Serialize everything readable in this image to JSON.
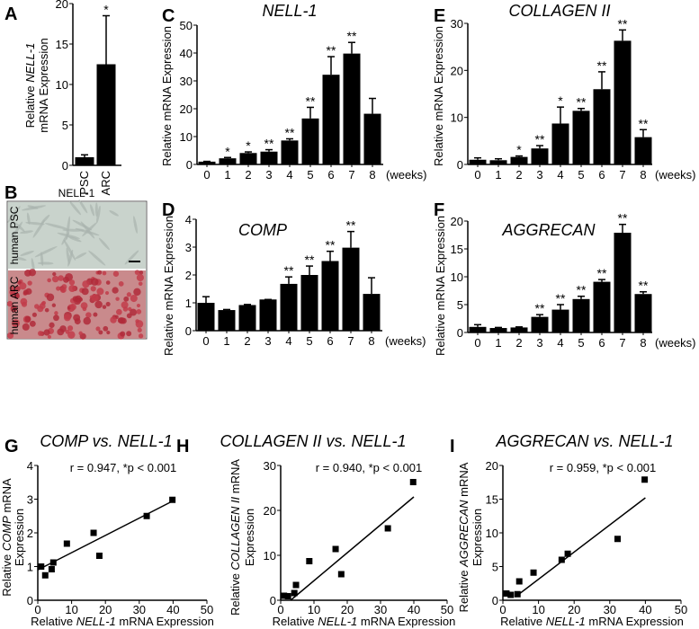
{
  "panel_letters": {
    "A": "A",
    "B": "B",
    "C": "C",
    "D": "D",
    "E": "E",
    "F": "F",
    "G": "G",
    "H": "H",
    "I": "I"
  },
  "panel_b": {
    "title": "NELL-1",
    "top_label": "human PSC",
    "bottom_label": "human ARC"
  },
  "weeks_label": "(weeks)",
  "chart_data": [
    {
      "id": "A",
      "type": "bar",
      "title": "",
      "categories": [
        "PSC",
        "ARC"
      ],
      "values": [
        1.0,
        12.5
      ],
      "errors": [
        0.3,
        6.0
      ],
      "significance": [
        "",
        "*"
      ],
      "ylabel_lines": [
        [
          "Relative ",
          "NELL-1",
          ""
        ],
        [
          "mRNA Expression"
        ]
      ],
      "ylim": [
        0,
        20
      ],
      "yticks": [
        0,
        5,
        10,
        15,
        20
      ]
    },
    {
      "id": "C",
      "type": "bar",
      "title": "NELL-1",
      "categories": [
        "0",
        "1",
        "2",
        "3",
        "4",
        "5",
        "6",
        "7",
        "8"
      ],
      "values": [
        1.0,
        2.2,
        4.1,
        4.6,
        8.6,
        16.5,
        32.2,
        39.8,
        18.2
      ],
      "errors": [
        0.1,
        0.3,
        0.4,
        0.7,
        0.6,
        4.0,
        6.5,
        4.0,
        5.5
      ],
      "significance": [
        "",
        "*",
        "*",
        "**",
        "**",
        "**",
        "**",
        "**",
        ""
      ],
      "ylabel_lines": [
        [
          "Relative mRNA Expression"
        ]
      ],
      "xlabel": "(weeks)",
      "ylim": [
        0,
        50
      ],
      "yticks": [
        0,
        10,
        20,
        30,
        40,
        50
      ]
    },
    {
      "id": "E",
      "type": "bar",
      "title": "COLLAGEN II",
      "categories": [
        "0",
        "1",
        "2",
        "3",
        "4",
        "5",
        "6",
        "7",
        "8"
      ],
      "values": [
        1.0,
        0.9,
        1.6,
        3.4,
        8.7,
        11.4,
        16.0,
        26.3,
        5.8
      ],
      "errors": [
        0.4,
        0.3,
        0.2,
        0.6,
        3.5,
        0.5,
        3.7,
        2.3,
        1.6
      ],
      "significance": [
        "",
        "",
        "*",
        "**",
        "*",
        "**",
        "**",
        "**",
        "**"
      ],
      "ylabel_lines": [
        [
          "Relative mRNA Expression"
        ]
      ],
      "xlabel": "(weeks)",
      "ylim": [
        0,
        30
      ],
      "yticks": [
        0,
        10,
        20,
        30
      ]
    },
    {
      "id": "D",
      "type": "bar",
      "title": "COMP",
      "categories": [
        "0",
        "1",
        "2",
        "3",
        "4",
        "5",
        "6",
        "7",
        "8"
      ],
      "values": [
        1.0,
        0.74,
        0.92,
        1.12,
        1.68,
        2.0,
        2.5,
        2.98,
        1.32
      ],
      "errors": [
        0.22,
        0.02,
        0.02,
        0.0,
        0.25,
        0.32,
        0.35,
        0.58,
        0.58
      ],
      "significance": [
        "",
        "",
        "",
        "",
        "**",
        "**",
        "**",
        "**",
        ""
      ],
      "ylabel_lines": [
        [
          "Relative mRNA Expression"
        ]
      ],
      "xlabel": "(weeks)",
      "ylim": [
        0,
        4
      ],
      "yticks": [
        0,
        1,
        2,
        3,
        4
      ]
    },
    {
      "id": "F",
      "type": "bar",
      "title": "AGGRECAN",
      "categories": [
        "0",
        "1",
        "2",
        "3",
        "4",
        "5",
        "6",
        "7",
        "8"
      ],
      "values": [
        1.0,
        0.8,
        0.9,
        2.8,
        4.1,
        6.0,
        9.1,
        17.9,
        6.9
      ],
      "errors": [
        0.4,
        0.1,
        0.1,
        0.4,
        0.9,
        0.5,
        0.4,
        1.5,
        0.4
      ],
      "significance": [
        "",
        "",
        "",
        "**",
        "**",
        "**",
        "**",
        "**",
        "**"
      ],
      "ylabel_lines": [
        [
          "Relative mRNA Expression"
        ]
      ],
      "xlabel": "(weeks)",
      "ylim": [
        0,
        20
      ],
      "yticks": [
        0,
        5,
        10,
        15,
        20
      ]
    },
    {
      "id": "G",
      "type": "scatter",
      "title": "COMP vs. NELL-1",
      "annotation": "r = 0.947,  *p < 0.001",
      "x": [
        1.0,
        2.2,
        4.1,
        4.6,
        8.6,
        16.5,
        32.2,
        39.8,
        18.2
      ],
      "y": [
        1.0,
        0.74,
        0.92,
        1.12,
        1.68,
        2.0,
        2.5,
        2.98,
        1.32
      ],
      "fit": [
        [
          0,
          0.9
        ],
        [
          40,
          2.95
        ]
      ],
      "ylabel_lines": [
        [
          "Relative ",
          "COMP",
          " mRNA"
        ],
        [
          "Expression"
        ]
      ],
      "xlabel_parts": [
        "Relative ",
        "NELL-1",
        " mRNA Expression"
      ],
      "xlim": [
        0,
        50
      ],
      "xticks": [
        0,
        10,
        20,
        30,
        40,
        50
      ],
      "ylim": [
        0,
        4
      ],
      "yticks": [
        0,
        1,
        2,
        3,
        4
      ]
    },
    {
      "id": "H",
      "type": "scatter",
      "title": "COLLAGEN II vs. NELL-1",
      "annotation": "r = 0.940, *p < 0.001",
      "x": [
        1.0,
        2.2,
        4.1,
        4.6,
        8.6,
        16.5,
        32.2,
        39.8,
        18.2
      ],
      "y": [
        1.0,
        0.9,
        1.6,
        3.4,
        8.7,
        11.4,
        16.0,
        26.3,
        5.8
      ],
      "fit": [
        [
          3,
          0
        ],
        [
          40,
          23
        ]
      ],
      "ylabel_lines": [
        [
          "Relative ",
          "COLLAGEN II",
          " mRNA"
        ],
        [
          "Expression"
        ]
      ],
      "xlabel_parts": [
        "Relative ",
        "NELL-1",
        " mRNA Expression"
      ],
      "xlim": [
        0,
        50
      ],
      "xticks": [
        0,
        10,
        20,
        30,
        40,
        50
      ],
      "ylim": [
        0,
        30
      ],
      "yticks": [
        0,
        10,
        20,
        30
      ]
    },
    {
      "id": "I",
      "type": "scatter",
      "title": "AGGRECAN vs. NELL-1",
      "annotation": "r = 0.959, *p < 0.001",
      "x": [
        1.0,
        2.2,
        4.1,
        4.6,
        8.6,
        16.5,
        32.2,
        39.8,
        18.2
      ],
      "y": [
        1.0,
        0.8,
        0.9,
        2.8,
        4.1,
        6.0,
        9.1,
        17.9,
        6.9
      ],
      "fit": [
        [
          3.5,
          0.5
        ],
        [
          40,
          15.2
        ]
      ],
      "ylabel_lines": [
        [
          "Relative ",
          "AGGRECAN",
          " mRNA"
        ],
        [
          "Expression"
        ]
      ],
      "xlabel_parts": [
        "Relative ",
        "NELL-1",
        " mRNA Expression"
      ],
      "xlim": [
        0,
        50
      ],
      "xticks": [
        0,
        10,
        20,
        30,
        40,
        50
      ],
      "ylim": [
        0,
        20
      ],
      "yticks": [
        0,
        5,
        10,
        15,
        20
      ]
    }
  ]
}
